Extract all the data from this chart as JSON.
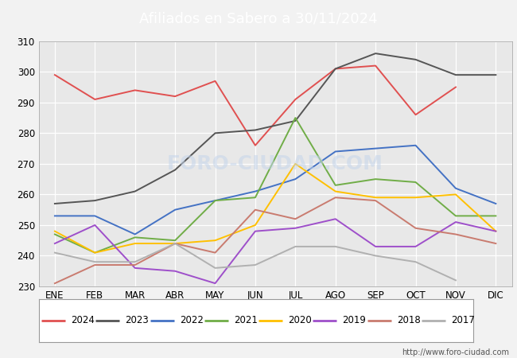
{
  "title": "Afiliados en Sabero a 30/11/2024",
  "title_bg_color": "#4472c4",
  "title_text_color": "white",
  "ylim": [
    230,
    310
  ],
  "yticks": [
    230,
    240,
    250,
    260,
    270,
    280,
    290,
    300,
    310
  ],
  "months": [
    "ENE",
    "FEB",
    "MAR",
    "ABR",
    "MAY",
    "JUN",
    "JUL",
    "AGO",
    "SEP",
    "OCT",
    "NOV",
    "DIC"
  ],
  "watermark": "FORO-CIUDAD.COM",
  "footnote": "http://www.foro-ciudad.com",
  "series": {
    "2024": {
      "color": "#e05050",
      "data": [
        299,
        291,
        294,
        292,
        297,
        276,
        291,
        301,
        302,
        286,
        295,
        null
      ]
    },
    "2023": {
      "color": "#555555",
      "data": [
        257,
        258,
        261,
        268,
        280,
        281,
        284,
        301,
        306,
        304,
        299,
        299
      ]
    },
    "2022": {
      "color": "#4472c4",
      "data": [
        253,
        253,
        247,
        255,
        258,
        261,
        265,
        274,
        275,
        276,
        262,
        257
      ]
    },
    "2021": {
      "color": "#70ad47",
      "data": [
        247,
        241,
        246,
        245,
        258,
        259,
        285,
        263,
        265,
        264,
        253,
        253
      ]
    },
    "2020": {
      "color": "#ffc000",
      "data": [
        248,
        241,
        244,
        244,
        245,
        250,
        270,
        261,
        259,
        259,
        260,
        248
      ]
    },
    "2019": {
      "color": "#9e4fca",
      "data": [
        244,
        250,
        236,
        235,
        231,
        248,
        249,
        252,
        243,
        243,
        251,
        248
      ]
    },
    "2018": {
      "color": "#c97b6f",
      "data": [
        231,
        237,
        237,
        244,
        241,
        255,
        252,
        259,
        258,
        249,
        247,
        244
      ]
    },
    "2017": {
      "color": "#b0b0b0",
      "data": [
        241,
        238,
        238,
        244,
        236,
        237,
        243,
        243,
        240,
        238,
        232,
        null
      ]
    }
  },
  "legend_order": [
    "2024",
    "2023",
    "2022",
    "2021",
    "2020",
    "2019",
    "2018",
    "2017"
  ],
  "bg_color": "#f2f2f2",
  "plot_bg_color": "#e8e8e8",
  "grid_color": "white"
}
